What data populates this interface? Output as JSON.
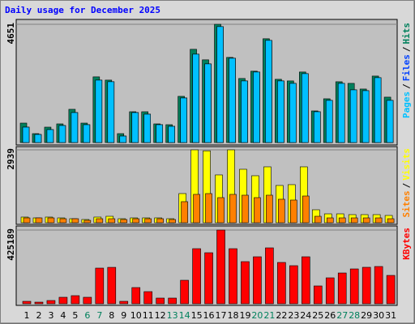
{
  "chart_data": [
    {
      "type": "bar",
      "title": "Daily usage for December 2025",
      "ylim": [
        0,
        4651
      ],
      "yticks": [
        4651
      ],
      "legend_separator": "/",
      "series": [
        {
          "name": "Hits",
          "color": "#00805c",
          "values": [
            765,
            351,
            606,
            734,
            1308,
            765,
            2584,
            2456,
            351,
            1212,
            1212,
            734,
            702,
            1818,
            3668,
            3254,
            4651,
            3349,
            2520,
            2807,
            4083,
            2488,
            2424,
            2775,
            1244,
            1722,
            2392,
            2328,
            2105,
            2615,
            1786
          ]
        },
        {
          "name": "Files",
          "color": "#0040ff",
          "values": [
            606,
            319,
            510,
            670,
            1180,
            702,
            2456,
            2393,
            255,
            1180,
            1116,
            702,
            638,
            1754,
            3477,
            3094,
            4560,
            3317,
            2424,
            2775,
            4019,
            2424,
            2328,
            2711,
            1212,
            1659,
            2328,
            2073,
            2041,
            2552,
            1659
          ]
        },
        {
          "name": "Pages",
          "color": "#00c0ff",
          "values": [
            606,
            319,
            510,
            670,
            1180,
            702,
            2456,
            2393,
            255,
            1180,
            1116,
            702,
            638,
            1754,
            3477,
            3094,
            4560,
            3317,
            2424,
            2775,
            4019,
            2424,
            2328,
            2711,
            1212,
            1659,
            2328,
            2073,
            2041,
            2552,
            1659
          ]
        }
      ]
    },
    {
      "type": "bar",
      "ylim": [
        0,
        2939
      ],
      "yticks": [
        2939
      ],
      "legend_separator": "/",
      "series": [
        {
          "name": "Visits",
          "color": "#ffff00",
          "values": [
            229,
            196,
            229,
            196,
            163,
            131,
            229,
            261,
            163,
            196,
            196,
            196,
            163,
            1176,
            2939,
            2900,
            1928,
            2939,
            2156,
            1895,
            2254,
            1503,
            1536,
            2254,
            523,
            359,
            359,
            327,
            327,
            327,
            294
          ]
        },
        {
          "name": "Sites",
          "color": "#ff8000",
          "values": [
            196,
            196,
            196,
            163,
            163,
            98,
            163,
            163,
            131,
            163,
            163,
            163,
            131,
            850,
            1144,
            1176,
            1013,
            1144,
            1111,
            1013,
            1111,
            948,
            915,
            1078,
            261,
            196,
            196,
            196,
            196,
            196,
            163
          ]
        }
      ]
    },
    {
      "type": "bar",
      "ylim": [
        0,
        425189
      ],
      "yticks": [
        425189
      ],
      "categories": [
        "1",
        "2",
        "3",
        "4",
        "5",
        "6",
        "7",
        "8",
        "9",
        "10",
        "11",
        "12",
        "13",
        "14",
        "15",
        "16",
        "17",
        "18",
        "19",
        "20",
        "21",
        "22",
        "23",
        "24",
        "25",
        "26",
        "27",
        "28",
        "29",
        "30",
        "31"
      ],
      "weekend": [
        5,
        6,
        12,
        13,
        19,
        20,
        26,
        27
      ],
      "weekend_color": "#00805c",
      "series": [
        {
          "name": "KBytes",
          "color": "#ff0000",
          "values": [
            14000,
            9300,
            18700,
            37400,
            46700,
            37400,
            205600,
            210000,
            14000,
            93400,
            70000,
            32700,
            32700,
            135500,
            317700,
            294300,
            425189,
            317700,
            243000,
            271000,
            322400,
            238300,
            219600,
            271000,
            102800,
            149500,
            177500,
            200900,
            210300,
            214900,
            163500
          ]
        }
      ]
    }
  ]
}
